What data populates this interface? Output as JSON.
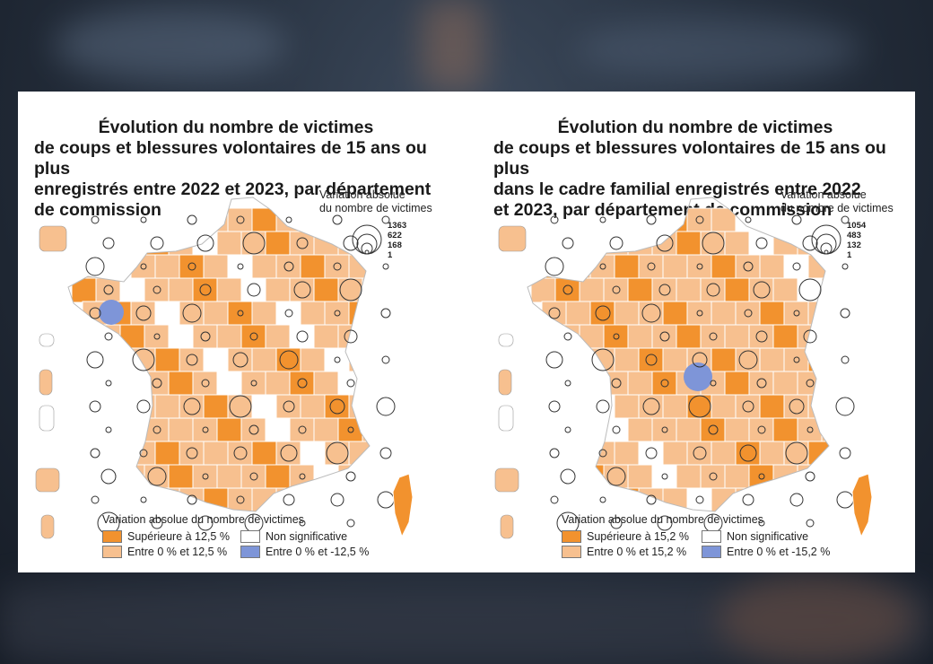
{
  "colors": {
    "high": "#f2922e",
    "mid": "#f7c08f",
    "nonsig": "#ffffff",
    "low": "#7e95d8",
    "border": "#ffffff",
    "circle": "#333333"
  },
  "maps": [
    {
      "title_line1": "Évolution du nombre de victimes",
      "title_rest": "de coups et blessures volontaires de 15 ans ou plus\nenregistrés entre 2022 et 2023, par département\nde commission",
      "scale_title": "Variation absolue\ndu nombre de victimes",
      "scale_values": [
        "1363",
        "622",
        "168",
        "1"
      ],
      "legend_title": "Variation absolue du nombre de victimes",
      "legend": [
        {
          "label": "Supérieure à 12,5 %",
          "color": "high"
        },
        {
          "label": "Non significative",
          "color": "nonsig"
        },
        {
          "label": "Entre 0 % et 12,5 %",
          "color": "mid"
        },
        {
          "label": "Entre 0 % et -12,5 %",
          "color": "low"
        }
      ]
    },
    {
      "title_line1": "Évolution du nombre de victimes",
      "title_rest": "de coups et blessures volontaires de 15 ans ou plus\ndans le cadre familial enregistrés entre 2022\net 2023, par département de commission",
      "scale_title": "Variation absolue\ndu nombre de victimes",
      "scale_values": [
        "1054",
        "483",
        "132",
        "1"
      ],
      "legend_title": "Variation absolue du nombre de victimes",
      "legend": [
        {
          "label": "Supérieure à 15,2 %",
          "color": "high"
        },
        {
          "label": "Non significative",
          "color": "nonsig"
        },
        {
          "label": "Entre 0 % et 15,2 %",
          "color": "mid"
        },
        {
          "label": "Entre 0 % et -15,2 %",
          "color": "low"
        }
      ]
    }
  ]
}
